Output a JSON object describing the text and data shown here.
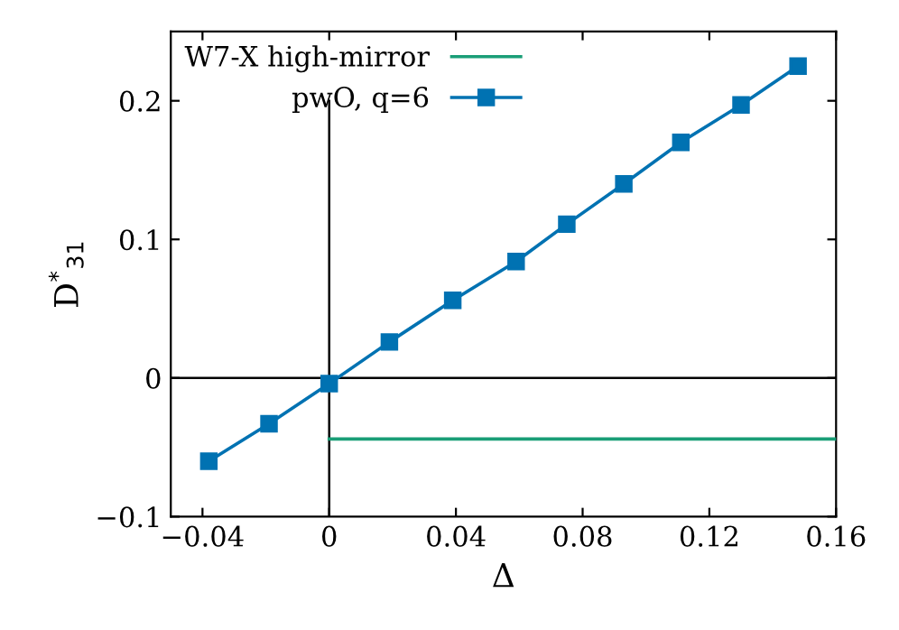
{
  "chart_data": {
    "type": "line",
    "xlabel": "Δ",
    "ylabel": "D$^{*}$$_{31}$",
    "series": [
      {
        "color": "#000000",
        "x": [
          0,
          0
        ],
        "values": [
          -0.1,
          0.2
        ],
        "marker": "none"
      },
      {
        "name": "W7-X high-mirror",
        "color": "#1a9e77",
        "x": [
          0,
          0.16
        ],
        "values": [
          -0.044,
          -0.044
        ],
        "marker": "none"
      },
      {
        "name": "pwO, q=6",
        "color": "#0072b2",
        "x": [
          -0.038,
          -0.019,
          0,
          0.019,
          0.039,
          0.059,
          0.075,
          0.093,
          0.111,
          0.13,
          0.148
        ],
        "values": [
          -0.06,
          -0.033,
          -0.004,
          0.026,
          0.056,
          0.084,
          0.111,
          0.14,
          0.17,
          0.197,
          0.225
        ],
        "marker": "square"
      }
    ],
    "ref_lines": [
      {
        "axis": "y",
        "value": 0,
        "color": "#000000"
      }
    ],
    "xlim": [
      -0.05,
      0.16
    ],
    "ylim": [
      -0.1,
      0.25
    ],
    "xticks": [
      {
        "value": -0.04,
        "label": "−0.04"
      },
      0,
      0.04,
      0.08,
      0.12,
      0.16
    ],
    "yticks": [
      {
        "value": -0.1,
        "label": "−0.1"
      },
      0,
      0.1,
      0.2
    ],
    "legend": "top left",
    "grid": false
  }
}
